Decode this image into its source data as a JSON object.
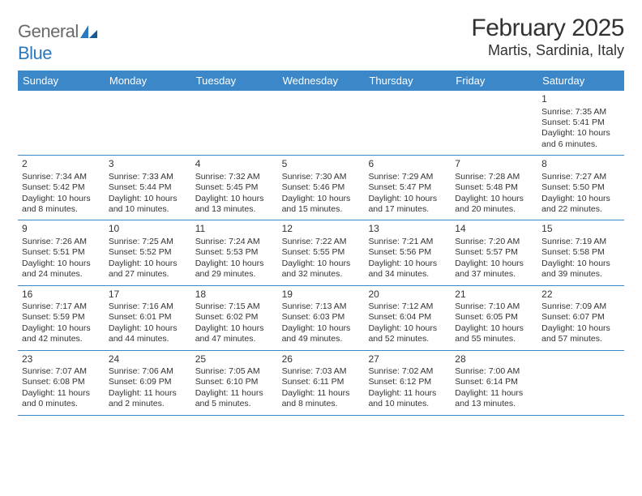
{
  "brand": {
    "general": "General",
    "blue": "Blue"
  },
  "title": "February 2025",
  "location": "Martis, Sardinia, Italy",
  "colors": {
    "header_bg": "#3b87c8",
    "header_text": "#ffffff",
    "text": "#333333",
    "logo_gray": "#6a6a6a",
    "logo_blue": "#2b77c0",
    "border": "#3b87c8",
    "background": "#ffffff"
  },
  "daynames": [
    "Sunday",
    "Monday",
    "Tuesday",
    "Wednesday",
    "Thursday",
    "Friday",
    "Saturday"
  ],
  "weeks": [
    [
      null,
      null,
      null,
      null,
      null,
      null,
      {
        "n": "1",
        "sr": "Sunrise: 7:35 AM",
        "ss": "Sunset: 5:41 PM",
        "dl": "Daylight: 10 hours and 6 minutes."
      }
    ],
    [
      {
        "n": "2",
        "sr": "Sunrise: 7:34 AM",
        "ss": "Sunset: 5:42 PM",
        "dl": "Daylight: 10 hours and 8 minutes."
      },
      {
        "n": "3",
        "sr": "Sunrise: 7:33 AM",
        "ss": "Sunset: 5:44 PM",
        "dl": "Daylight: 10 hours and 10 minutes."
      },
      {
        "n": "4",
        "sr": "Sunrise: 7:32 AM",
        "ss": "Sunset: 5:45 PM",
        "dl": "Daylight: 10 hours and 13 minutes."
      },
      {
        "n": "5",
        "sr": "Sunrise: 7:30 AM",
        "ss": "Sunset: 5:46 PM",
        "dl": "Daylight: 10 hours and 15 minutes."
      },
      {
        "n": "6",
        "sr": "Sunrise: 7:29 AM",
        "ss": "Sunset: 5:47 PM",
        "dl": "Daylight: 10 hours and 17 minutes."
      },
      {
        "n": "7",
        "sr": "Sunrise: 7:28 AM",
        "ss": "Sunset: 5:48 PM",
        "dl": "Daylight: 10 hours and 20 minutes."
      },
      {
        "n": "8",
        "sr": "Sunrise: 7:27 AM",
        "ss": "Sunset: 5:50 PM",
        "dl": "Daylight: 10 hours and 22 minutes."
      }
    ],
    [
      {
        "n": "9",
        "sr": "Sunrise: 7:26 AM",
        "ss": "Sunset: 5:51 PM",
        "dl": "Daylight: 10 hours and 24 minutes."
      },
      {
        "n": "10",
        "sr": "Sunrise: 7:25 AM",
        "ss": "Sunset: 5:52 PM",
        "dl": "Daylight: 10 hours and 27 minutes."
      },
      {
        "n": "11",
        "sr": "Sunrise: 7:24 AM",
        "ss": "Sunset: 5:53 PM",
        "dl": "Daylight: 10 hours and 29 minutes."
      },
      {
        "n": "12",
        "sr": "Sunrise: 7:22 AM",
        "ss": "Sunset: 5:55 PM",
        "dl": "Daylight: 10 hours and 32 minutes."
      },
      {
        "n": "13",
        "sr": "Sunrise: 7:21 AM",
        "ss": "Sunset: 5:56 PM",
        "dl": "Daylight: 10 hours and 34 minutes."
      },
      {
        "n": "14",
        "sr": "Sunrise: 7:20 AM",
        "ss": "Sunset: 5:57 PM",
        "dl": "Daylight: 10 hours and 37 minutes."
      },
      {
        "n": "15",
        "sr": "Sunrise: 7:19 AM",
        "ss": "Sunset: 5:58 PM",
        "dl": "Daylight: 10 hours and 39 minutes."
      }
    ],
    [
      {
        "n": "16",
        "sr": "Sunrise: 7:17 AM",
        "ss": "Sunset: 5:59 PM",
        "dl": "Daylight: 10 hours and 42 minutes."
      },
      {
        "n": "17",
        "sr": "Sunrise: 7:16 AM",
        "ss": "Sunset: 6:01 PM",
        "dl": "Daylight: 10 hours and 44 minutes."
      },
      {
        "n": "18",
        "sr": "Sunrise: 7:15 AM",
        "ss": "Sunset: 6:02 PM",
        "dl": "Daylight: 10 hours and 47 minutes."
      },
      {
        "n": "19",
        "sr": "Sunrise: 7:13 AM",
        "ss": "Sunset: 6:03 PM",
        "dl": "Daylight: 10 hours and 49 minutes."
      },
      {
        "n": "20",
        "sr": "Sunrise: 7:12 AM",
        "ss": "Sunset: 6:04 PM",
        "dl": "Daylight: 10 hours and 52 minutes."
      },
      {
        "n": "21",
        "sr": "Sunrise: 7:10 AM",
        "ss": "Sunset: 6:05 PM",
        "dl": "Daylight: 10 hours and 55 minutes."
      },
      {
        "n": "22",
        "sr": "Sunrise: 7:09 AM",
        "ss": "Sunset: 6:07 PM",
        "dl": "Daylight: 10 hours and 57 minutes."
      }
    ],
    [
      {
        "n": "23",
        "sr": "Sunrise: 7:07 AM",
        "ss": "Sunset: 6:08 PM",
        "dl": "Daylight: 11 hours and 0 minutes."
      },
      {
        "n": "24",
        "sr": "Sunrise: 7:06 AM",
        "ss": "Sunset: 6:09 PM",
        "dl": "Daylight: 11 hours and 2 minutes."
      },
      {
        "n": "25",
        "sr": "Sunrise: 7:05 AM",
        "ss": "Sunset: 6:10 PM",
        "dl": "Daylight: 11 hours and 5 minutes."
      },
      {
        "n": "26",
        "sr": "Sunrise: 7:03 AM",
        "ss": "Sunset: 6:11 PM",
        "dl": "Daylight: 11 hours and 8 minutes."
      },
      {
        "n": "27",
        "sr": "Sunrise: 7:02 AM",
        "ss": "Sunset: 6:12 PM",
        "dl": "Daylight: 11 hours and 10 minutes."
      },
      {
        "n": "28",
        "sr": "Sunrise: 7:00 AM",
        "ss": "Sunset: 6:14 PM",
        "dl": "Daylight: 11 hours and 13 minutes."
      },
      null
    ]
  ]
}
